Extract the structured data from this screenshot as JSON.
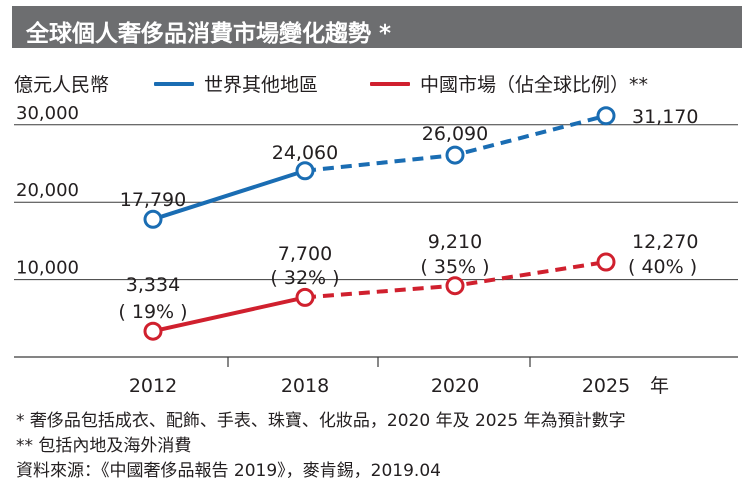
{
  "title": "全球個人奢侈品消費市場變化趨勢 *",
  "unit_label": "億元人民幣",
  "x_unit": "年",
  "colors": {
    "global": "#1a6db3",
    "china": "#d0202e",
    "title_bg": "#6d6e70"
  },
  "chart_data": {
    "type": "line",
    "categories": [
      "2012",
      "2018",
      "2020",
      "2025"
    ],
    "ylim": [
      0,
      35000
    ],
    "y_ticks": [
      "10,000",
      "20,000",
      "30,000"
    ],
    "projected_from": "2018",
    "series": [
      {
        "name": "世界其他地區",
        "values": [
          17790,
          24060,
          26090,
          31170
        ],
        "labels": [
          "17,790",
          "24,060",
          "26,090",
          "31,170"
        ],
        "shares": [
          "",
          "",
          "",
          ""
        ]
      },
      {
        "name": "中國市場（佔全球比例）**",
        "values": [
          3334,
          7700,
          9210,
          12270
        ],
        "labels": [
          "3,334",
          "7,700",
          "9,210",
          "12,270"
        ],
        "shares": [
          "( 19% )",
          "( 32% )",
          "( 35% )",
          "( 40% )"
        ]
      }
    ]
  },
  "footnotes": [
    "* 奢侈品包括成衣、配飾、手表、珠寶、化妝品，2020 年及 2025 年為預計數字",
    "** 包括內地及海外消費",
    "資料來源：《中國奢侈品報告 2019》，麥肯錫，2019.04"
  ]
}
